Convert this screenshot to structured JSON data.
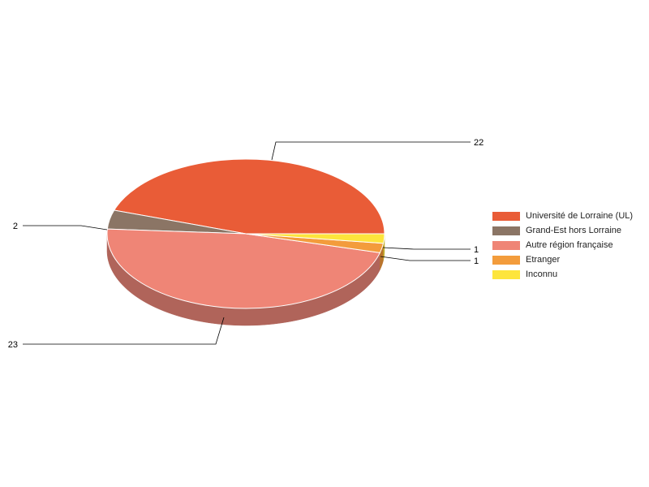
{
  "chart_data": {
    "type": "pie",
    "style": "3d",
    "legend_position": "right",
    "slices": [
      {
        "label": "Université de Lorraine (UL)",
        "value": 22,
        "color": "#e95c37",
        "side_color": "#a8432a"
      },
      {
        "label": "Grand-Est hors Lorraine",
        "value": 2,
        "color": "#8b7565",
        "side_color": "#64544a"
      },
      {
        "label": "Autre région française",
        "value": 23,
        "color": "#ef8576",
        "side_color": "#b0645a"
      },
      {
        "label": "Etranger",
        "value": 1,
        "color": "#f39c3c",
        "side_color": "#b9742c"
      },
      {
        "label": "Inconnu",
        "value": 1,
        "color": "#fde53c",
        "side_color": "#c2ae2c"
      }
    ],
    "data_labels": [
      "22",
      "2",
      "23",
      "1",
      "1"
    ]
  }
}
